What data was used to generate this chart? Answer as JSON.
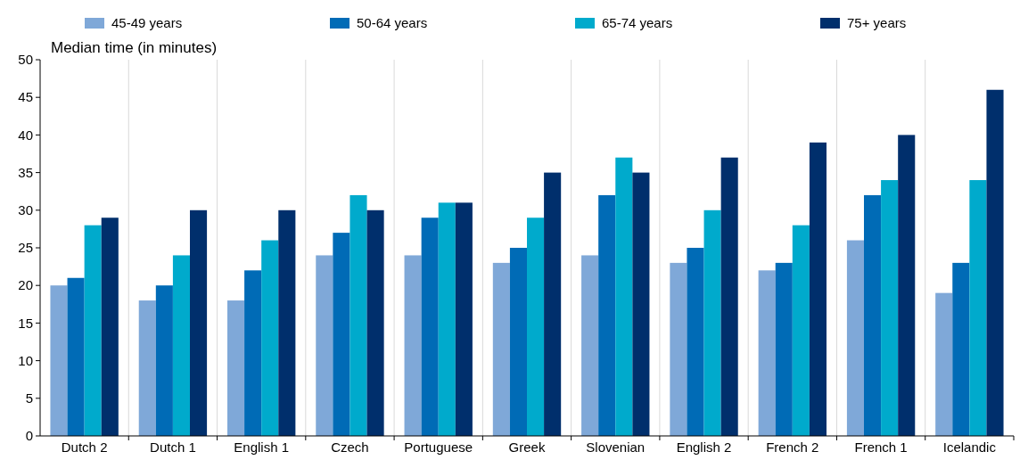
{
  "chart_data": {
    "type": "bar",
    "ylabel": "Median time (in minutes)",
    "categories": [
      "Dutch 2",
      "Dutch 1",
      "English 1",
      "Czech",
      "Portuguese",
      "Greek",
      "Slovenian",
      "English 2",
      "French 2",
      "French 1",
      "Icelandic"
    ],
    "series": [
      {
        "name": "45-49 years",
        "color": "#7fa8d8",
        "values": [
          20,
          18,
          18,
          24,
          24,
          23,
          24,
          23,
          22,
          26,
          19
        ]
      },
      {
        "name": "50-64 years",
        "color": "#006bb6",
        "values": [
          21,
          20,
          22,
          27,
          29,
          25,
          32,
          25,
          23,
          32,
          23
        ]
      },
      {
        "name": "65-74 years",
        "color": "#00aacc",
        "values": [
          28,
          24,
          26,
          32,
          31,
          29,
          37,
          30,
          28,
          34,
          34
        ]
      },
      {
        "name": "75+ years",
        "color": "#002f6c",
        "values": [
          29,
          30,
          30,
          30,
          31,
          35,
          35,
          37,
          39,
          40,
          46
        ]
      }
    ],
    "ylim": [
      0,
      50
    ],
    "yticks": [
      0,
      5,
      10,
      15,
      20,
      25,
      30,
      35,
      40,
      45,
      50
    ],
    "legend": "top"
  }
}
